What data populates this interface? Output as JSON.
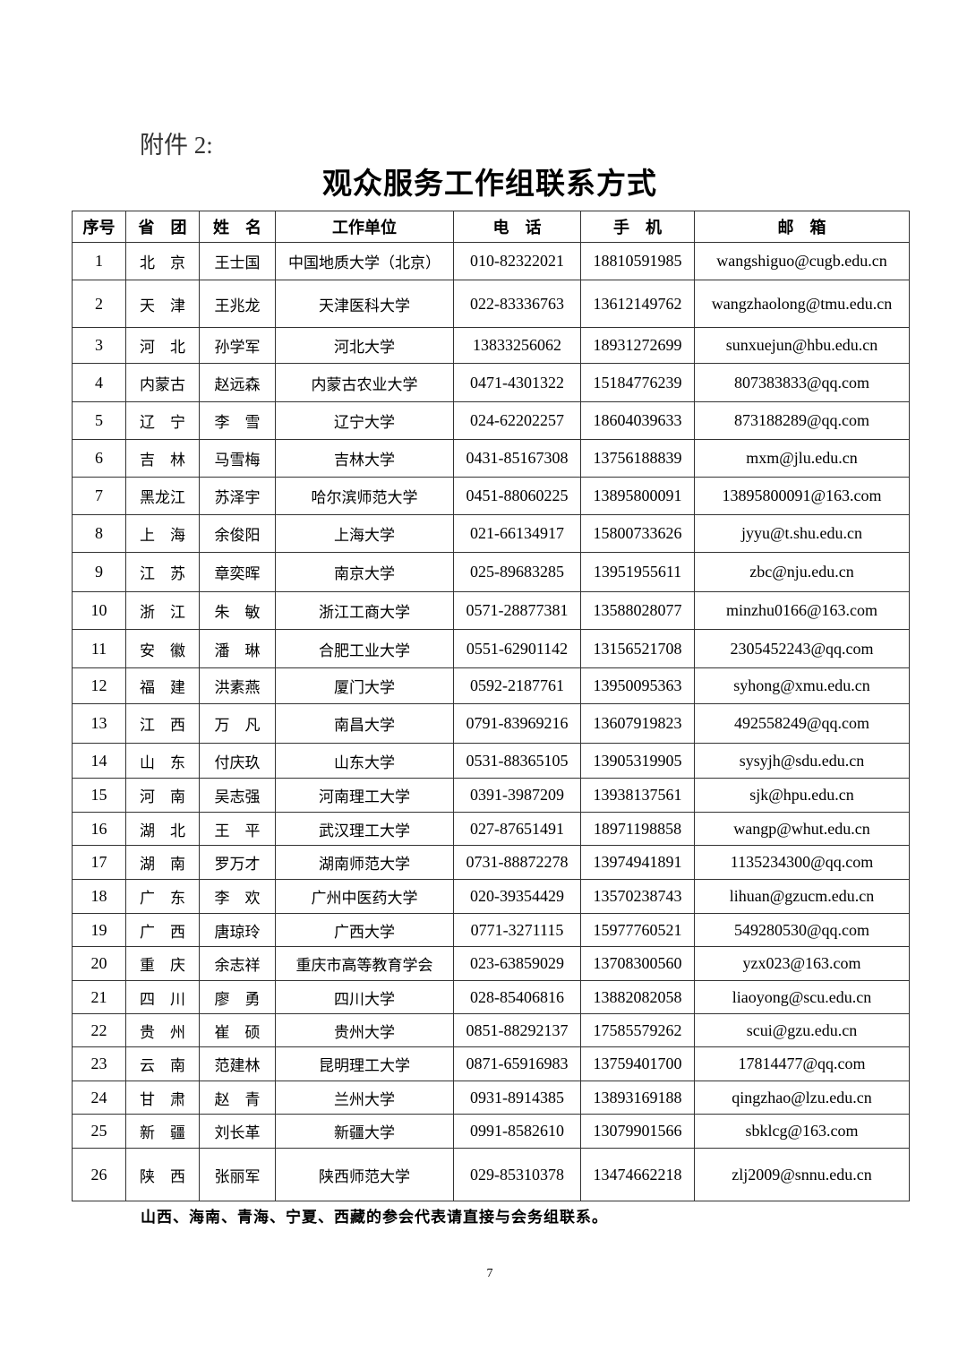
{
  "attachment_label": "附件 2:",
  "title": "观众服务工作组联系方式",
  "table": {
    "headers": [
      "序号",
      "省　团",
      "姓　名",
      "工作单位",
      "电　话",
      "手　机",
      "邮　箱"
    ],
    "rows": [
      [
        "1",
        "北　京",
        "王士国",
        "中国地质大学（北京）",
        "010-82322021",
        "18810591985",
        "wangshiguo@cugb.edu.cn"
      ],
      [
        "2",
        "天　津",
        "王兆龙",
        "天津医科大学",
        "022-83336763",
        "13612149762",
        "wangzhaolong@tmu.edu.cn"
      ],
      [
        "3",
        "河　北",
        "孙学军",
        "河北大学",
        "13833256062",
        "18931272699",
        "sunxuejun@hbu.edu.cn"
      ],
      [
        "4",
        "内蒙古",
        "赵远森",
        "内蒙古农业大学",
        "0471-4301322",
        "15184776239",
        "807383833@qq.com"
      ],
      [
        "5",
        "辽　宁",
        "李　雪",
        "辽宁大学",
        "024-62202257",
        "18604039633",
        "873188289@qq.com"
      ],
      [
        "6",
        "吉　林",
        "马雪梅",
        "吉林大学",
        "0431-85167308",
        "13756188839",
        "mxm@jlu.edu.cn"
      ],
      [
        "7",
        "黑龙江",
        "苏泽宇",
        "哈尔滨师范大学",
        "0451-88060225",
        "13895800091",
        "13895800091@163.com"
      ],
      [
        "8",
        "上　海",
        "余俊阳",
        "上海大学",
        "021-66134917",
        "15800733626",
        "jyyu@t.shu.edu.cn"
      ],
      [
        "9",
        "江　苏",
        "章奕晖",
        "南京大学",
        "025-89683285",
        "13951955611",
        "zbc@nju.edu.cn"
      ],
      [
        "10",
        "浙　江",
        "朱　敏",
        "浙江工商大学",
        "0571-28877381",
        "13588028077",
        "minzhu0166@163.com"
      ],
      [
        "11",
        "安　徽",
        "潘　琳",
        "合肥工业大学",
        "0551-62901142",
        "13156521708",
        "2305452243@qq.com"
      ],
      [
        "12",
        "福　建",
        "洪素燕",
        "厦门大学",
        "0592-2187761",
        "13950095363",
        "syhong@xmu.edu.cn"
      ],
      [
        "13",
        "江　西",
        "万　凡",
        "南昌大学",
        "0791-83969216",
        "13607919823",
        "492558249@qq.com"
      ],
      [
        "14",
        "山　东",
        "付庆玖",
        "山东大学",
        "0531-88365105",
        "13905319905",
        "sysyjh@sdu.edu.cn"
      ],
      [
        "15",
        "河　南",
        "吴志强",
        "河南理工大学",
        "0391-3987209",
        "13938137561",
        "sjk@hpu.edu.cn"
      ],
      [
        "16",
        "湖　北",
        "王　平",
        "武汉理工大学",
        "027-87651491",
        "18971198858",
        "wangp@whut.edu.cn"
      ],
      [
        "17",
        "湖　南",
        "罗万才",
        "湖南师范大学",
        "0731-88872278",
        "13974941891",
        "1135234300@qq.com"
      ],
      [
        "18",
        "广　东",
        "李　欢",
        "广州中医药大学",
        "020-39354429",
        "13570238743",
        "lihuan@gzucm.edu.cn"
      ],
      [
        "19",
        "广　西",
        "唐琼玲",
        "广西大学",
        "0771-3271115",
        "15977760521",
        "549280530@qq.com"
      ],
      [
        "20",
        "重　庆",
        "余志祥",
        "重庆市高等教育学会",
        "023-63859029",
        "13708300560",
        "yzx023@163.com"
      ],
      [
        "21",
        "四　川",
        "廖　勇",
        "四川大学",
        "028-85406816",
        "13882082058",
        "liaoyong@scu.edu.cn"
      ],
      [
        "22",
        "贵　州",
        "崔　硕",
        "贵州大学",
        "0851-88292137",
        "17585579262",
        "scui@gzu.edu.cn"
      ],
      [
        "23",
        "云　南",
        "范建林",
        "昆明理工大学",
        "0871-65916983",
        "13759401700",
        "17814477@qq.com"
      ],
      [
        "24",
        "甘　肃",
        "赵　青",
        "兰州大学",
        "0931-8914385",
        "13893169188",
        "qingzhao@lzu.edu.cn"
      ],
      [
        "25",
        "新　疆",
        "刘长革",
        "新疆大学",
        "0991-8582610",
        "13079901566",
        "sbklcg@163.com"
      ],
      [
        "26",
        "陕　西",
        "张丽军",
        "陕西师范大学",
        "029-85310378",
        "13474662218",
        "zlj2009@snnu.edu.cn"
      ]
    ]
  },
  "note": "山西、海南、青海、宁夏、西藏的参会代表请直接与会务组联系。",
  "page_number": "7"
}
